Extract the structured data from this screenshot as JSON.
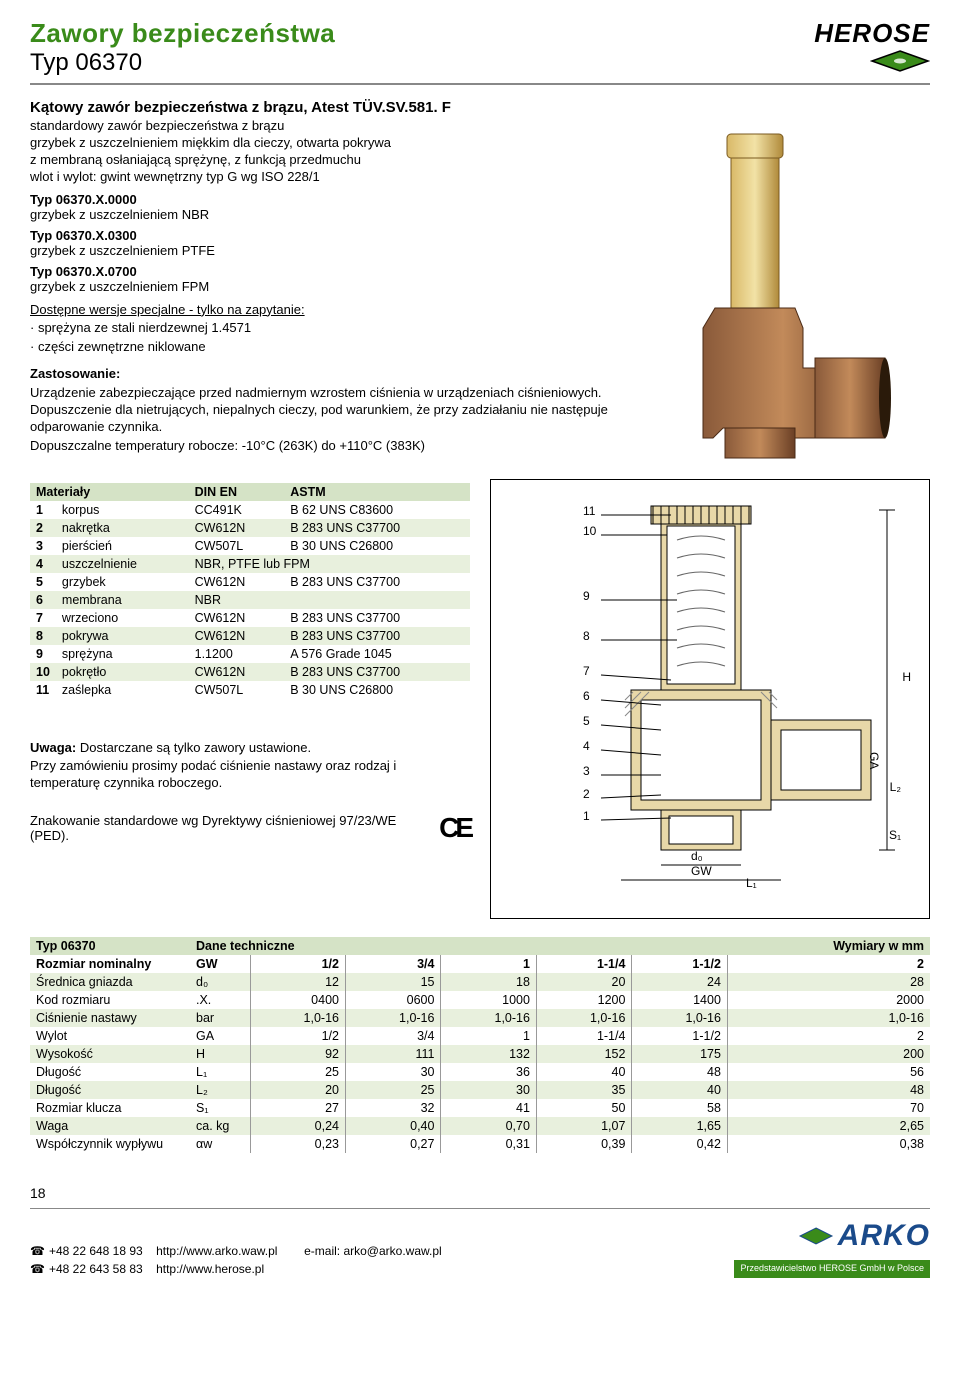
{
  "header": {
    "title": "Zawory bezpieczeństwa",
    "subtitle": "Typ 06370",
    "logo_text": "HEROSE",
    "logo_rhombus_fill": "#3a8b1a",
    "logo_rhombus_stroke": "#000"
  },
  "intro": {
    "heading": "Kątowy zawór bezpieczeństwa z brązu, Atest TÜV.SV.581. F",
    "para": "standardowy zawór bezpieczeństwa z brązu\ngrzybek z uszczelnieniem miękkim dla cieczy, otwarta pokrywa\nz membraną osłaniającą sprężynę, z funkcją przedmuchu\nwlot i wylot: gwint wewnętrzny typ G wg ISO 228/1",
    "variants": [
      {
        "type": "Typ 06370.X.0000",
        "desc": "grzybek z uszczelnieniem NBR"
      },
      {
        "type": "Typ 06370.X.0300",
        "desc": "grzybek z uszczelnieniem PTFE"
      },
      {
        "type": "Typ 06370.X.0700",
        "desc": "grzybek z uszczelnieniem FPM"
      }
    ],
    "special_heading": "Dostępne wersje specjalne - tylko na zapytanie:",
    "special_lines": [
      "· sprężyna ze stali nierdzewnej 1.4571",
      "· części zewnętrzne niklowane"
    ],
    "application_heading": "Zastosowanie:",
    "application_text": "Urządzenie zabezpieczające przed nadmiernym wzrostem ciśnienia w urządzeniach ciśnieniowych. Dopuszczenie dla nietrujących, niepalnych cieczy, pod warunkiem, że przy zadziałaniu nie następuje odparowanie czynnika.",
    "temp_text": "Dopuszczalne temperatury robocze: -10°C (263K) do +110°C (383K)"
  },
  "materials": {
    "label": "Materiały",
    "col_din": "DIN EN",
    "col_astm": "ASTM",
    "rows": [
      {
        "n": "1",
        "name": "korpus",
        "din": "CC491K",
        "astm": "B 62 UNS C83600"
      },
      {
        "n": "2",
        "name": "nakrętka",
        "din": "CW612N",
        "astm": "B 283 UNS C37700"
      },
      {
        "n": "3",
        "name": "pierścień",
        "din": "CW507L",
        "astm": "B 30 UNS C26800"
      },
      {
        "n": "4",
        "name": "uszczelnienie",
        "din": "NBR, PTFE lub FPM",
        "astm": ""
      },
      {
        "n": "5",
        "name": "grzybek",
        "din": "CW612N",
        "astm": "B 283 UNS C37700"
      },
      {
        "n": "6",
        "name": "membrana",
        "din": "NBR",
        "astm": ""
      },
      {
        "n": "7",
        "name": "wrzeciono",
        "din": "CW612N",
        "astm": "B 283 UNS C37700"
      },
      {
        "n": "8",
        "name": "pokrywa",
        "din": "CW612N",
        "astm": "B 283 UNS C37700"
      },
      {
        "n": "9",
        "name": "sprężyna",
        "din": "1.1200",
        "astm": "A 576 Grade 1045"
      },
      {
        "n": "10",
        "name": "pokrętło",
        "din": "CW612N",
        "astm": "B 283 UNS C37700"
      },
      {
        "n": "11",
        "name": "zaślepka",
        "din": "CW507L",
        "astm": "B 30 UNS C26800"
      }
    ]
  },
  "notes": {
    "uwaga_label": "Uwaga:",
    "uwaga_text": " Dostarczane są tylko zawory ustawione.\nPrzy zamówieniu prosimy podać ciśnienie nastawy oraz rodzaj i temperaturę czynnika roboczego.",
    "marking_text": "Znakowanie standardowe wg Dyrektywy ciśnieniowej 97/23/WE (PED)."
  },
  "drawing": {
    "callouts_left": [
      "11",
      "10",
      "9",
      "8",
      "7",
      "6",
      "5",
      "4",
      "3",
      "2",
      "1"
    ],
    "dim_labels": [
      "H",
      "GA",
      "L₂",
      "S₁",
      "d₀",
      "GW",
      "L₁"
    ]
  },
  "tech": {
    "title_left": "Typ 06370",
    "title_mid": "Dane techniczne",
    "title_right": "Wymiary w mm",
    "rows": [
      {
        "label": "Rozmiar nominalny",
        "unit": "GW",
        "vals": [
          "1/2",
          "3/4",
          "1",
          "1-1/4",
          "1-1/2",
          "2"
        ],
        "bold": true
      },
      {
        "label": "Średnica gniazda",
        "unit": "d₀",
        "vals": [
          "12",
          "15",
          "18",
          "20",
          "24",
          "28"
        ]
      },
      {
        "label": "Kod rozmiaru",
        "unit": ".X.",
        "vals": [
          "0400",
          "0600",
          "1000",
          "1200",
          "1400",
          "2000"
        ]
      },
      {
        "label": "Ciśnienie nastawy",
        "unit": "bar",
        "vals": [
          "1,0-16",
          "1,0-16",
          "1,0-16",
          "1,0-16",
          "1,0-16",
          "1,0-16"
        ]
      },
      {
        "label": "Wylot",
        "unit": "GA",
        "vals": [
          "1/2",
          "3/4",
          "1",
          "1-1/4",
          "1-1/2",
          "2"
        ]
      },
      {
        "label": "Wysokość",
        "unit": "H",
        "vals": [
          "92",
          "111",
          "132",
          "152",
          "175",
          "200"
        ]
      },
      {
        "label": "Długość",
        "unit": "L₁",
        "vals": [
          "25",
          "30",
          "36",
          "40",
          "48",
          "56"
        ]
      },
      {
        "label": "Długość",
        "unit": "L₂",
        "vals": [
          "20",
          "25",
          "30",
          "35",
          "40",
          "48"
        ]
      },
      {
        "label": "Rozmiar klucza",
        "unit": "S₁",
        "vals": [
          "27",
          "32",
          "41",
          "50",
          "58",
          "70"
        ]
      },
      {
        "label": "Waga",
        "unit": "ca. kg",
        "vals": [
          "0,24",
          "0,40",
          "0,70",
          "1,07",
          "1,65",
          "2,65"
        ]
      },
      {
        "label": "Współczynnik wypływu",
        "unit": "αw",
        "vals": [
          "0,23",
          "0,27",
          "0,31",
          "0,39",
          "0,42",
          "0,38"
        ]
      }
    ]
  },
  "footer": {
    "page": "18",
    "phone1": "+48 22 648 18 93",
    "phone2": "+48 22 643 58 83",
    "url1": "http://www.arko.waw.pl",
    "url2": "http://www.herose.pl",
    "email": "e-mail: arko@arko.waw.pl",
    "arko_text": "ARKO",
    "arko_sub": "Przedstawicielstwo HEROSE GmbH w Polsce"
  }
}
